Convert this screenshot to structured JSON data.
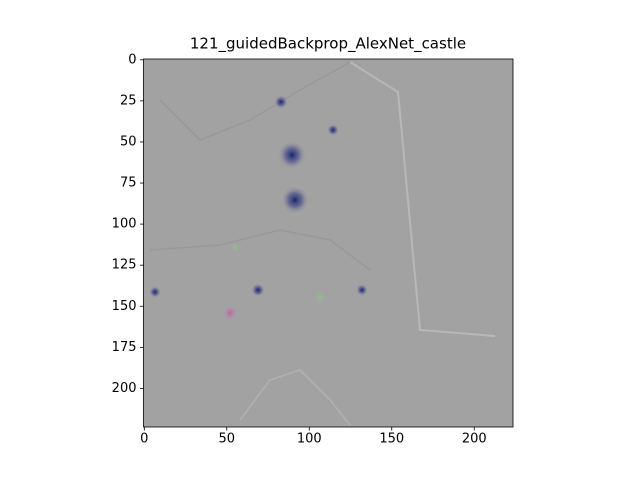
{
  "chart_data": {
    "type": "image",
    "title": "121_guidedBackprop_AlexNet_castle",
    "xlim": [
      -0.5,
      223.5
    ],
    "ylim": [
      223.5,
      -0.5
    ],
    "xticks": [
      0,
      50,
      100,
      150,
      200
    ],
    "yticks": [
      0,
      25,
      50,
      75,
      100,
      125,
      150,
      175,
      200
    ]
  }
}
